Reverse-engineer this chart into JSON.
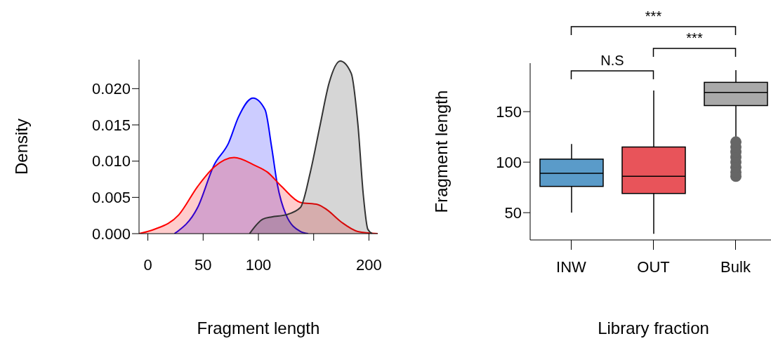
{
  "chart_data": [
    {
      "type": "area",
      "xlabel": "Fragment length",
      "ylabel": "Density",
      "marker": "none",
      "xlim": [
        -8,
        208
      ],
      "xticks": [
        0,
        50,
        100,
        {
          "value": 150,
          "label": null
        },
        200
      ],
      "ylim": [
        0,
        0.024
      ],
      "yticks": [
        {
          "value": 0,
          "label": "0.000"
        },
        {
          "value": 0.005,
          "label": "0.005"
        },
        {
          "value": 0.01,
          "label": "0.010"
        },
        {
          "value": 0.015,
          "label": "0.015"
        },
        {
          "value": 0.02,
          "label": "0.020"
        }
      ],
      "series": [
        {
          "color": "#0000ff",
          "x": [
            24,
            45,
            60,
            73,
            82,
            95,
            106,
            112,
            117,
            125,
            138,
            145
          ],
          "values": [
            0,
            0.0036,
            0.0095,
            0.0125,
            0.0161,
            0.0187,
            0.0171,
            0.0119,
            0.0069,
            0.0026,
            0.0003,
            0
          ]
        },
        {
          "color": "#ff0000",
          "x": [
            -8,
            6,
            28,
            45,
            60,
            78,
            97,
            108,
            121,
            138,
            154,
            162,
            175,
            190,
            208
          ],
          "values": [
            0,
            0.0006,
            0.0026,
            0.0065,
            0.0092,
            0.0105,
            0.0094,
            0.0085,
            0.0065,
            0.0043,
            0.004,
            0.0033,
            0.0016,
            0.0003,
            0
          ]
        },
        {
          "color": "#333333",
          "x": [
            92,
            104,
            112,
            125,
            138,
            147,
            156,
            164,
            174,
            184,
            190,
            195,
            199,
            203
          ],
          "values": [
            0,
            0.002,
            0.0023,
            0.0026,
            0.0036,
            0.0085,
            0.0151,
            0.0208,
            0.0238,
            0.0221,
            0.0151,
            0.0052,
            0.0006,
            0
          ]
        }
      ]
    },
    {
      "type": "box",
      "xlabel": "Library fraction",
      "ylabel": "Fragment length",
      "categories": [
        "INW",
        "OUT",
        "Bulk"
      ],
      "colors": [
        "#5a9bc9",
        "#e8545a",
        "#a9a9a9"
      ],
      "ylim": [
        23,
        198
      ],
      "yticks": [
        50,
        100,
        150
      ],
      "boxes": [
        {
          "low": 50,
          "q1": 76,
          "median": 89,
          "q3": 103,
          "high": 118
        },
        {
          "low": 29,
          "q1": 69,
          "median": 86,
          "q3": 115,
          "high": 171
        },
        {
          "low": 122,
          "q1": 156,
          "median": 169,
          "q3": 179,
          "high": 191,
          "outliers": [
            86,
            90,
            95,
            100,
            105,
            110,
            115,
            120
          ]
        }
      ],
      "annotations": [
        "***",
        "***",
        "N.S"
      ]
    }
  ]
}
